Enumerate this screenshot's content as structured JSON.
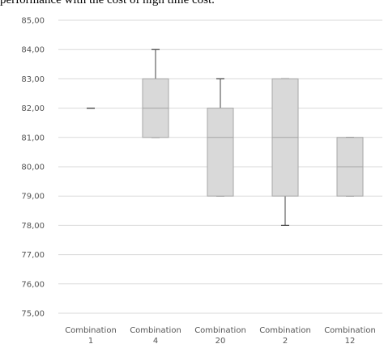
{
  "caption": "performance with the cost of high time cost.",
  "chart_data": {
    "type": "box",
    "categories": [
      "Combination 1",
      "Combination 4",
      "Combination 20",
      "Combination 2",
      "Combination 12"
    ],
    "boxes": [
      {
        "min": 82,
        "q1": 82,
        "median": 82,
        "q3": 82,
        "max": 82
      },
      {
        "min": 81,
        "q1": 81,
        "median": 82,
        "q3": 83,
        "max": 84
      },
      {
        "min": 79,
        "q1": 79,
        "median": 81,
        "q3": 82,
        "max": 83
      },
      {
        "min": 78,
        "q1": 79,
        "median": 81,
        "q3": 83,
        "max": 83
      },
      {
        "min": 79,
        "q1": 79,
        "median": 80,
        "q3": 81,
        "max": 81
      }
    ],
    "yticks": [
      "75,00",
      "76,00",
      "77,00",
      "78,00",
      "79,00",
      "80,00",
      "81,00",
      "82,00",
      "83,00",
      "84,00",
      "85,00"
    ],
    "ylim": [
      75,
      85
    ],
    "grid": true,
    "colors": {
      "box_fill": "#d9d9d9",
      "box_stroke": "#a6a6a6",
      "whisker": "#404040",
      "grid": "#d9d9d9"
    }
  }
}
